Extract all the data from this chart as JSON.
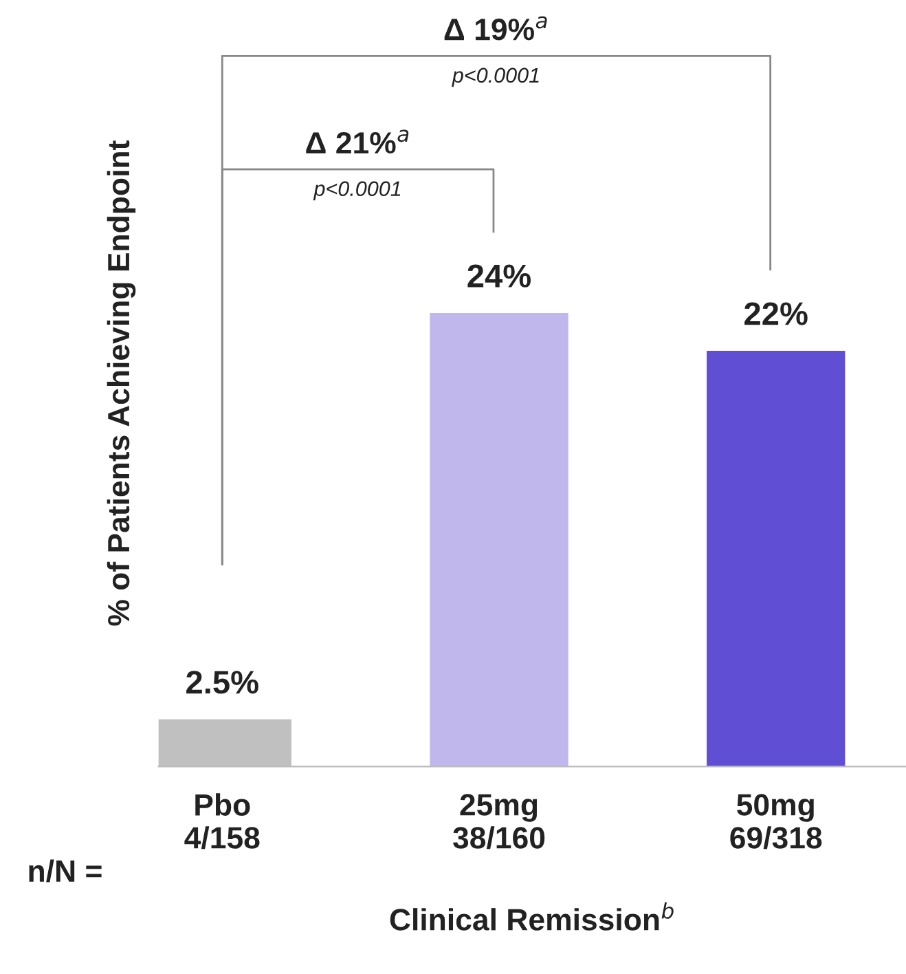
{
  "chart_data": {
    "type": "bar",
    "categories": [
      "Pbo\n4/158",
      "25mg\n38/160",
      "50mg\n69/318"
    ],
    "values": [
      2.5,
      24,
      22
    ],
    "colors": [
      "#c0c0c0",
      "#c0b8ec",
      "#604fd4"
    ],
    "value_labels": [
      "2.5%",
      "24%",
      "22%"
    ],
    "ylabel": "% of Patients Achieving Endpoint",
    "xlabel": "Clinical Remission$^{b}$",
    "annotations": [
      "n/N =",
      "Δ 21%$^{a}$",
      "p<0.0001",
      "Δ 19%$^{a}$",
      "p<0.0001"
    ],
    "grid": false,
    "legend": false
  }
}
